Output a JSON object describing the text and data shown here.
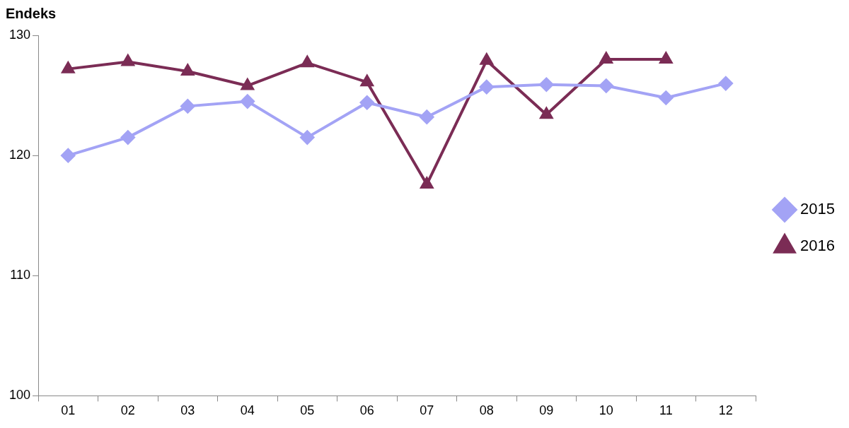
{
  "chart_data": {
    "type": "line",
    "ylabel": "Endeks",
    "categories": [
      "01",
      "02",
      "03",
      "04",
      "05",
      "06",
      "07",
      "08",
      "09",
      "10",
      "11",
      "12"
    ],
    "series": [
      {
        "name": "2015",
        "color": "#a3a3f5",
        "marker": "diamond",
        "values": [
          120.0,
          121.5,
          124.1,
          124.5,
          121.5,
          124.4,
          123.2,
          125.7,
          125.9,
          125.8,
          124.8,
          126.0
        ]
      },
      {
        "name": "2016",
        "color": "#7b2c55",
        "marker": "triangle",
        "values": [
          127.2,
          127.8,
          127.0,
          125.8,
          127.7,
          126.1,
          117.6,
          127.9,
          123.4,
          128.0,
          128.0,
          null
        ]
      }
    ],
    "ylim": [
      100,
      130
    ],
    "yticks": [
      100,
      110,
      120,
      130
    ],
    "grid": false,
    "legend": "right",
    "line_style": "solid"
  }
}
